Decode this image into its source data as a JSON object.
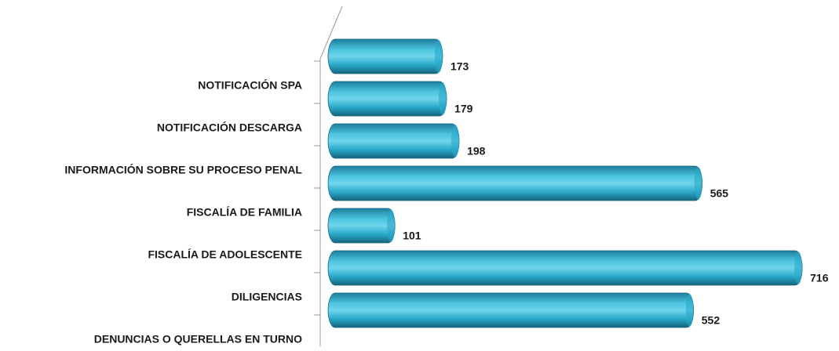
{
  "chart_data": {
    "type": "bar",
    "orientation": "horizontal",
    "categories": [
      "NOTIFICACIÓN SPA",
      "NOTIFICACIÓN DESCARGA",
      "INFORMACIÓN SOBRE SU PROCESO PENAL",
      "FISCALÍA DE FAMILIA",
      "FISCALÍA DE ADOLESCENTE",
      "DILIGENCIAS",
      "DENUNCIAS O QUERELLAS EN TURNO"
    ],
    "values": [
      173,
      179,
      198,
      565,
      101,
      716,
      552
    ],
    "color": "#2aa8c8",
    "xlim": [
      0,
      800
    ]
  }
}
